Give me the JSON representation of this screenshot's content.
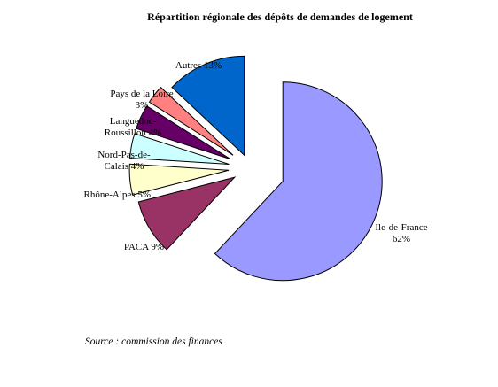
{
  "chart_data": {
    "type": "pie",
    "title": "Répartition régionale des dépôts de demandes de logement",
    "legend": "none",
    "unit": "%",
    "slices": [
      {
        "name": "Ile-de-France",
        "value": 62,
        "label": [
          "Ile-de-France",
          "62%"
        ],
        "color": "#9999ff"
      },
      {
        "name": "PACA",
        "value": 9,
        "label": [
          "PACA 9%"
        ],
        "color": "#993366"
      },
      {
        "name": "Rhône-Alpes",
        "value": 5,
        "label": [
          "Rhône-Alpes 5%"
        ],
        "color": "#ffffcc"
      },
      {
        "name": "Nord-Pas-de-Calais",
        "value": 4,
        "label": [
          "Nord-Pas-de-",
          "Calais 4%"
        ],
        "color": "#ccffff"
      },
      {
        "name": "Languedoc-Roussillon",
        "value": 4,
        "label": [
          "Languedoc-",
          "Roussillon 4%"
        ],
        "color": "#660066"
      },
      {
        "name": "Pays de la Loire",
        "value": 3,
        "label": [
          "Pays de la Loire",
          "3%"
        ],
        "color": "#ff8080"
      },
      {
        "name": "Autres",
        "value": 13,
        "label": [
          "Autres 13%"
        ],
        "color": "#0066cc"
      }
    ]
  },
  "source": "Source : commission des finances"
}
